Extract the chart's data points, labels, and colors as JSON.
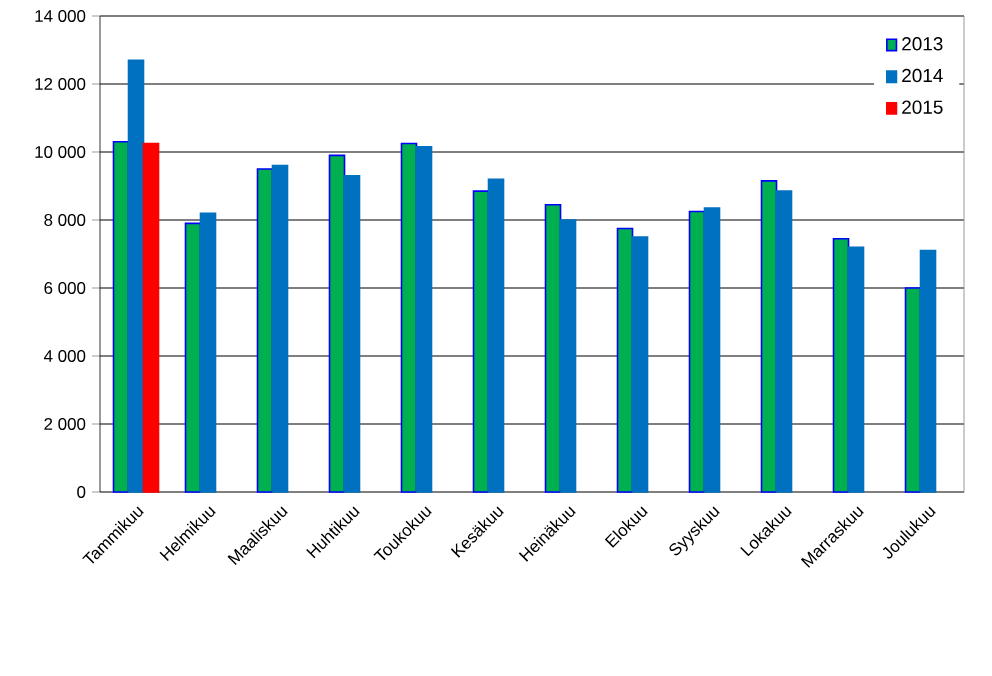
{
  "chart_data": {
    "type": "bar",
    "categories": [
      "Tammikuu",
      "Helmikuu",
      "Maaliskuu",
      "Huhtikuu",
      "Toukokuu",
      "Kesäkuu",
      "Heinäkuu",
      "Elokuu",
      "Syyskuu",
      "Lokakuu",
      "Marraskuu",
      "Joulukuu"
    ],
    "series": [
      {
        "name": "2013",
        "color": "#00b050",
        "values": [
          10300,
          7900,
          9500,
          9900,
          10250,
          8850,
          8450,
          7750,
          8250,
          9150,
          7450,
          6000
        ]
      },
      {
        "name": "2014",
        "color": "#0070c0",
        "values": [
          12700,
          8200,
          9600,
          9300,
          10150,
          9200,
          8000,
          7500,
          8350,
          8850,
          7200,
          7100
        ]
      },
      {
        "name": "2015",
        "color": "#ff0000",
        "values": [
          10250,
          null,
          null,
          null,
          null,
          null,
          null,
          null,
          null,
          null,
          null,
          null
        ]
      }
    ],
    "ylim": [
      0,
      14000
    ],
    "yticks": [
      {
        "value": 0,
        "label": "0"
      },
      {
        "value": 2000,
        "label": "2 000"
      },
      {
        "value": 4000,
        "label": "4 000"
      },
      {
        "value": 6000,
        "label": "6 000"
      },
      {
        "value": 8000,
        "label": "8 000"
      },
      {
        "value": 10000,
        "label": "10 000"
      },
      {
        "value": 12000,
        "label": "12 000"
      },
      {
        "value": 14000,
        "label": "14 000"
      }
    ],
    "grid": "y",
    "legend": "top right"
  }
}
